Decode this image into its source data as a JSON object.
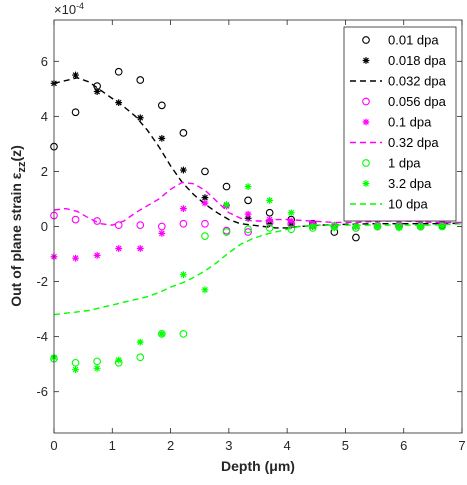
{
  "chart_data": {
    "type": "scatter",
    "xlabel": "Depth (μm)",
    "ylabel": "Out of plane strain ε_zz(z)",
    "ylabel_main": "Out of plane strain ",
    "ylabel_sym": "ε",
    "ylabel_sub": "zz",
    "ylabel_tail": "(z)",
    "xlabel_main": "Depth (",
    "xlabel_sym": "μ",
    "xlabel_tail": "m)",
    "y_exponent": "×10",
    "y_exponent_power": "-4",
    "xlim": [
      0,
      7
    ],
    "ylim": [
      -7.5,
      7.5
    ],
    "y_scale": 0.0001,
    "x_ticks": [
      "0",
      "1",
      "2",
      "3",
      "4",
      "5",
      "6",
      "7"
    ],
    "y_ticks": [
      "-6",
      "-4",
      "-2",
      "0",
      "2",
      "4",
      "6"
    ],
    "legend_location": "top-right",
    "grid": false,
    "series": [
      {
        "name": "0.01 dpa",
        "style": "circle",
        "color": "#000000",
        "x": [
          0,
          0.37,
          0.74,
          1.11,
          1.48,
          1.85,
          2.22,
          2.59,
          2.96,
          3.33,
          3.7,
          4.07,
          4.44,
          4.81,
          5.18,
          5.55,
          5.92,
          6.29,
          6.66
        ],
        "y": [
          2.9,
          4.15,
          5.1,
          5.62,
          5.32,
          4.4,
          3.4,
          2.0,
          1.45,
          0.95,
          0.5,
          0.25,
          0.1,
          -0.2,
          -0.4,
          0.45,
          0.0,
          0.0,
          0.05
        ]
      },
      {
        "name": "0.018 dpa",
        "style": "star",
        "color": "#000000",
        "x": [
          0,
          0.37,
          0.74,
          1.11,
          1.48,
          1.85,
          2.22,
          2.59,
          2.96,
          3.33,
          3.7,
          4.07,
          4.44,
          4.81,
          5.18,
          5.55,
          5.92,
          6.29,
          6.66
        ],
        "y": [
          5.2,
          5.5,
          4.9,
          4.5,
          3.95,
          3.2,
          2.05,
          1.05,
          0.75,
          0.3,
          0.1,
          0.05,
          0.0,
          0.0,
          0.0,
          0.0,
          0.0,
          0.0,
          0.0
        ]
      },
      {
        "name": "0.032 dpa",
        "style": "dashed",
        "color": "#000000",
        "x": [
          0,
          0.2,
          0.4,
          0.6,
          0.8,
          1.0,
          1.2,
          1.4,
          1.6,
          1.8,
          2.0,
          2.2,
          2.4,
          2.6,
          2.8,
          3.0,
          3.2,
          3.4,
          3.6,
          3.8,
          4.0,
          4.2,
          4.6,
          5.0,
          5.5,
          6.0,
          6.5,
          7.0
        ],
        "y": [
          5.2,
          5.3,
          5.4,
          5.25,
          4.95,
          4.65,
          4.35,
          4.0,
          3.5,
          2.9,
          2.2,
          1.6,
          1.15,
          0.8,
          0.5,
          0.25,
          0.1,
          0.05,
          0.0,
          -0.05,
          -0.05,
          0.0,
          0.05,
          0.08,
          0.1,
          0.1,
          0.1,
          0.12
        ]
      },
      {
        "name": "0.056 dpa",
        "style": "circle",
        "color": "#ff00ff",
        "x": [
          0,
          0.37,
          0.74,
          1.11,
          1.48,
          1.85,
          2.22,
          2.59,
          2.96,
          3.33,
          3.7,
          4.07,
          4.44,
          4.81,
          5.18,
          5.55,
          5.92,
          6.29,
          6.66
        ],
        "y": [
          0.4,
          0.25,
          0.2,
          0.05,
          0.05,
          0.0,
          0.1,
          0.1,
          -0.15,
          -0.2,
          0.15,
          0.1,
          0.05,
          0.0,
          -0.05,
          0.0,
          0.05,
          0.0,
          0.1
        ]
      },
      {
        "name": "0.1 dpa",
        "style": "star",
        "color": "#ff00ff",
        "x": [
          0,
          0.37,
          0.74,
          1.11,
          1.48,
          1.85,
          2.22,
          2.59,
          2.96,
          3.33,
          3.7,
          4.07,
          4.44,
          4.81,
          5.18,
          5.55,
          5.92,
          6.29,
          6.66
        ],
        "y": [
          -1.1,
          -1.15,
          -1.05,
          -0.8,
          -0.8,
          -0.25,
          0.65,
          0.85,
          0.75,
          0.45,
          0.25,
          0.2,
          0.1,
          0.05,
          0.0,
          0.1,
          0.0,
          0.2,
          0.1
        ]
      },
      {
        "name": "0.32 dpa",
        "style": "dashed",
        "color": "#ff00ff",
        "x": [
          0,
          0.2,
          0.4,
          0.6,
          0.8,
          1.0,
          1.2,
          1.4,
          1.6,
          1.8,
          2.0,
          2.2,
          2.4,
          2.6,
          2.8,
          3.0,
          3.2,
          3.4,
          3.6,
          3.8,
          4.0,
          4.4,
          4.8,
          5.2,
          5.6,
          6.0,
          6.5,
          7.0
        ],
        "y": [
          0.6,
          0.65,
          0.55,
          0.3,
          0.1,
          0.05,
          0.2,
          0.5,
          0.75,
          1.0,
          1.35,
          1.6,
          1.55,
          1.3,
          0.9,
          0.5,
          0.3,
          0.2,
          0.2,
          0.25,
          0.25,
          0.2,
          0.15,
          0.15,
          0.2,
          0.2,
          0.15,
          0.15
        ]
      },
      {
        "name": "1 dpa",
        "style": "circle",
        "color": "#00ff00",
        "x": [
          0,
          0.37,
          0.74,
          1.11,
          1.48,
          1.85,
          2.22,
          2.59,
          2.96,
          3.33,
          3.7,
          4.07,
          4.44,
          4.81,
          5.18,
          5.55,
          5.92,
          6.29,
          6.66
        ],
        "y": [
          -4.8,
          -4.95,
          -4.9,
          -4.95,
          -4.75,
          -3.9,
          -3.9,
          -0.35,
          -0.2,
          -0.1,
          -0.05,
          -0.1,
          -0.05,
          0.0,
          -0.05,
          0.0,
          0.0,
          0.0,
          0.0
        ]
      },
      {
        "name": "3.2 dpa",
        "style": "star",
        "color": "#00ff00",
        "x": [
          0,
          0.37,
          0.74,
          1.11,
          1.48,
          1.85,
          2.22,
          2.59,
          2.96,
          3.33,
          3.7,
          4.07,
          4.44,
          4.81,
          5.18,
          5.55,
          5.92,
          6.29,
          6.66
        ],
        "y": [
          -4.75,
          -5.2,
          -5.15,
          -4.85,
          -4.2,
          -3.9,
          -1.75,
          -2.3,
          0.8,
          1.45,
          0.95,
          0.5,
          0.0,
          -0.05,
          0.0,
          0.0,
          -0.05,
          0.0,
          0.0
        ]
      },
      {
        "name": "10 dpa",
        "style": "dashed",
        "color": "#00ff00",
        "x": [
          0,
          0.2,
          0.4,
          0.6,
          0.8,
          1.0,
          1.2,
          1.4,
          1.6,
          1.8,
          2.0,
          2.2,
          2.4,
          2.6,
          2.8,
          3.0,
          3.2,
          3.4,
          3.6,
          3.8,
          4.0,
          4.2,
          4.5,
          5.0,
          5.5,
          6.0,
          6.5,
          7.0
        ],
        "y": [
          -3.2,
          -3.15,
          -3.1,
          -3.05,
          -2.95,
          -2.85,
          -2.75,
          -2.65,
          -2.55,
          -2.4,
          -2.2,
          -2.05,
          -1.85,
          -1.6,
          -1.3,
          -0.95,
          -0.65,
          -0.45,
          -0.3,
          -0.2,
          -0.1,
          0.0,
          0.05,
          0.05,
          0.05,
          0.05,
          0.05,
          0.1
        ]
      }
    ]
  }
}
